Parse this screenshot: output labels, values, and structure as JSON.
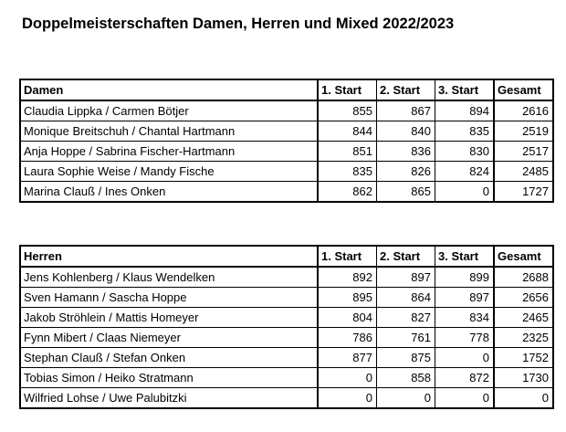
{
  "title": "Doppelmeisterschaften Damen, Herren und Mixed 2022/2023",
  "damen": {
    "header": [
      "Damen",
      "1. Start",
      "2. Start",
      "3. Start",
      "Gesamt"
    ],
    "rows": [
      [
        "Claudia Lippka / Carmen Bötjer",
        "855",
        "867",
        "894",
        "2616"
      ],
      [
        "Monique Breitschuh / Chantal Hartmann",
        "844",
        "840",
        "835",
        "2519"
      ],
      [
        "Anja Hoppe / Sabrina Fischer-Hartmann",
        "851",
        "836",
        "830",
        "2517"
      ],
      [
        "Laura Sophie Weise / Mandy Fische",
        "835",
        "826",
        "824",
        "2485"
      ],
      [
        "Marina Clauß / Ines Onken",
        "862",
        "865",
        "0",
        "1727"
      ]
    ]
  },
  "herren": {
    "header": [
      "Herren",
      "1. Start",
      "2. Start",
      "3. Start",
      "Gesamt"
    ],
    "rows": [
      [
        "Jens Kohlenberg / Klaus Wendelken",
        "892",
        "897",
        "899",
        "2688"
      ],
      [
        "Sven Hamann / Sascha Hoppe",
        "895",
        "864",
        "897",
        "2656"
      ],
      [
        "Jakob Ströhlein / Mattis Homeyer",
        "804",
        "827",
        "834",
        "2465"
      ],
      [
        "Fynn Mibert / Claas Niemeyer",
        "786",
        "761",
        "778",
        "2325"
      ],
      [
        "Stephan Clauß / Stefan Onken",
        "877",
        "875",
        "0",
        "1752"
      ],
      [
        "Tobias Simon / Heiko Stratmann",
        "0",
        "858",
        "872",
        "1730"
      ],
      [
        "Wilfried Lohse / Uwe Palubitzki",
        "0",
        "0",
        "0",
        "0"
      ]
    ]
  }
}
